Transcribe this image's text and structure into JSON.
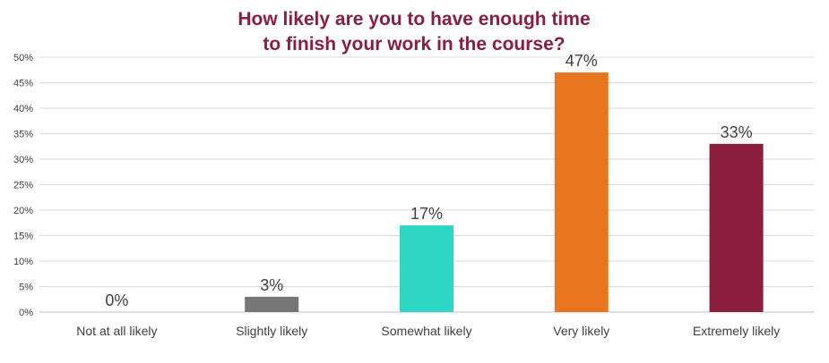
{
  "chart_data": {
    "type": "bar",
    "title_lines": [
      "How likely are you to have enough time",
      "to finish your work in the course?"
    ],
    "categories": [
      "Not at all likely",
      "Slightly likely",
      "Somewhat likely",
      "Very likely",
      "Extremely likely"
    ],
    "values": [
      0,
      3,
      17,
      47,
      33
    ],
    "data_labels": [
      "0%",
      "3%",
      "17%",
      "47%",
      "33%"
    ],
    "colors": [
      "#2ed6c6",
      "#767676",
      "#2ed6c6",
      "#e8761f",
      "#8b1e3f"
    ],
    "title_color": "#8b1e3f",
    "ylim": [
      0,
      50
    ],
    "yticks": [
      0,
      5,
      10,
      15,
      20,
      25,
      30,
      35,
      40,
      45,
      50
    ],
    "ytick_labels": [
      "0%",
      "5%",
      "10%",
      "15%",
      "20%",
      "25%",
      "30%",
      "35%",
      "40%",
      "45%",
      "50%"
    ],
    "xlabel": "",
    "ylabel": "",
    "grid": true,
    "legend": "none"
  }
}
